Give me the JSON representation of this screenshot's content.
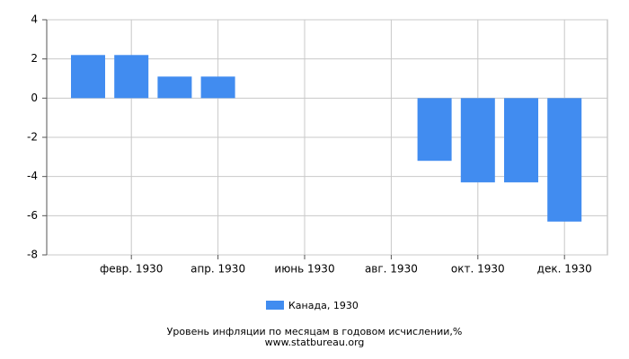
{
  "chart_data": {
    "type": "bar",
    "categories": [
      null,
      "февр. 1930",
      null,
      "апр. 1930",
      null,
      "июнь 1930",
      null,
      "авг. 1930",
      null,
      "окт. 1930",
      null,
      "дек. 1930"
    ],
    "series": [
      {
        "name": "Канада, 1930",
        "color": "#418cf0",
        "values": [
          2.2,
          2.2,
          1.1,
          1.1,
          0,
          0,
          0,
          0,
          -3.2,
          -4.3,
          -4.3,
          -6.3
        ]
      }
    ],
    "ylim": [
      -8,
      4
    ],
    "yticks": [
      -8,
      -6,
      -4,
      -2,
      0,
      2,
      4
    ],
    "grid": true,
    "caption": "Уровень инфляции по месяцам в годовом исчислении,%",
    "source": "www.statbureau.org"
  }
}
